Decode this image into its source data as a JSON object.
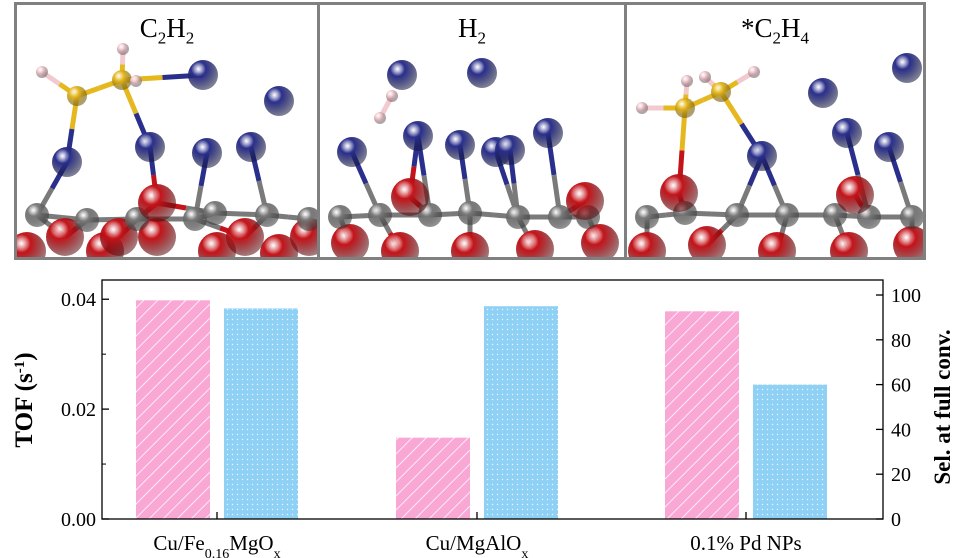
{
  "panels": [
    {
      "label": {
        "base1": "C",
        "sub1": "2",
        "base2": "H",
        "sub2": "2",
        "pre": ""
      },
      "adsorbate": "acetylene"
    },
    {
      "label": {
        "base1": "H",
        "sub1": "2",
        "base2": "",
        "sub2": "",
        "pre": ""
      },
      "adsorbate": "hydrogen"
    },
    {
      "label": {
        "base1": "C",
        "sub1": "2",
        "base2": "H",
        "sub2": "4",
        "pre": "*"
      },
      "adsorbate": "ethylene"
    }
  ],
  "colors": {
    "cu_atom": "#2a2f8c",
    "o_atom": "#c4141a",
    "mg_atom": "#7a7a7a",
    "c_atom": "#e6b820",
    "h_atom": "#f1c9cf",
    "tof_bar": "#f9a7d4",
    "sel_bar": "#8fd0f5",
    "frame": "#808080"
  },
  "chart_data": {
    "type": "bar",
    "categories": [
      {
        "base": "Cu/Fe",
        "sub": "0.16",
        "tail": "MgO",
        "sub2": "x"
      },
      {
        "base": "Cu/MgAlO",
        "sub": "x",
        "tail": "",
        "sub2": ""
      },
      {
        "base": "0.1% Pd NPs",
        "sub": "",
        "tail": "",
        "sub2": ""
      }
    ],
    "series": [
      {
        "axis": "left",
        "values": [
          0.0398,
          0.0148,
          0.0378
        ]
      },
      {
        "axis": "right",
        "values": [
          94,
          95,
          60
        ]
      }
    ],
    "ylabel_left": {
      "base": "TOF (s",
      "sup": "-1",
      "tail": ")"
    },
    "ylabel_right": "Sel. at full conv.",
    "ylim_left": [
      0,
      0.0435
    ],
    "ylim_right": [
      0,
      106.7
    ],
    "yticks_left": [
      "0.00",
      "0.02",
      "0.04"
    ],
    "yticks_right": [
      "0",
      "20",
      "40",
      "60",
      "80",
      "100"
    ],
    "grid": false
  }
}
